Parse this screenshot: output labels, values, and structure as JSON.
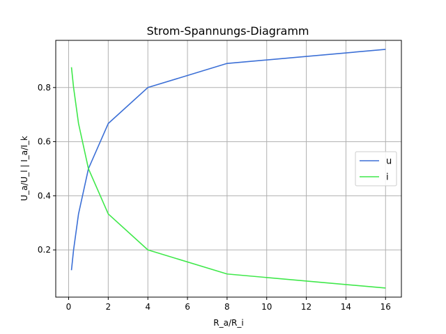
{
  "chart_data": {
    "type": "line",
    "title": "Strom-Spannungs-Diagramm",
    "xlabel": "R_a/R_i",
    "ylabel": "U_a/U_l | I_a/I_k",
    "xlim": [
      -0.65,
      16.8
    ],
    "ylim": [
      0.0255,
      0.9743
    ],
    "x_ticks": [
      0,
      2,
      4,
      6,
      8,
      10,
      12,
      14,
      16
    ],
    "y_ticks": [
      0.2,
      0.4,
      0.6,
      0.8
    ],
    "grid": true,
    "legend_position": "center right",
    "series": [
      {
        "name": "u",
        "color": "#3b6fd6",
        "x": [
          0.143,
          0.25,
          0.5,
          1,
          2,
          4,
          8,
          16
        ],
        "y": [
          0.125,
          0.2,
          0.333,
          0.5,
          0.667,
          0.8,
          0.889,
          0.941
        ]
      },
      {
        "name": "i",
        "color": "#3fe84a",
        "x": [
          0.143,
          0.25,
          0.5,
          1,
          2,
          4,
          8,
          16
        ],
        "y": [
          0.875,
          0.8,
          0.667,
          0.5,
          0.333,
          0.2,
          0.111,
          0.059
        ]
      }
    ]
  }
}
